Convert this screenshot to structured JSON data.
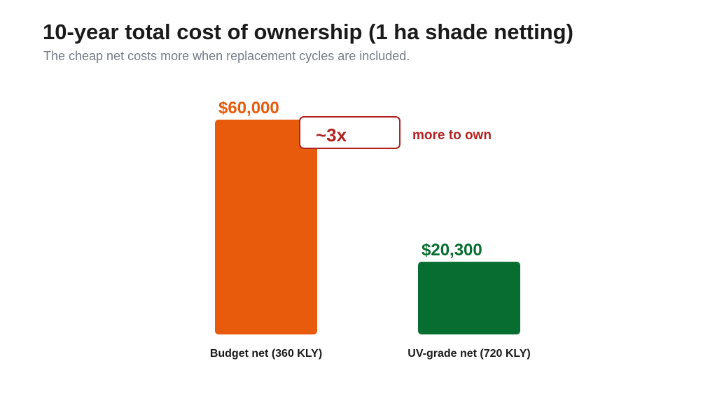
{
  "header": {
    "title": "10-year total cost of ownership (1 ha shade netting)",
    "subtitle": "The cheap net costs more when replacement cycles are included."
  },
  "chart_data": {
    "type": "bar",
    "title": "10-year total cost of ownership (1 ha shade netting)",
    "subtitle": "The cheap net costs more when replacement cycles are included.",
    "categories": [
      "Budget net (360 KLY)",
      "UV-grade net (720 KLY)"
    ],
    "values": [
      60000,
      20300
    ],
    "value_labels": [
      "$60,000",
      "$20,300"
    ],
    "colors": [
      "#e85a0c",
      "#076d30"
    ],
    "xlabel": "",
    "ylabel": "",
    "ylim": [
      0,
      60000
    ],
    "grid": false,
    "legend": "none",
    "annotation": {
      "ratio": "~3x",
      "text": "more to own",
      "color": "#b22222"
    }
  }
}
